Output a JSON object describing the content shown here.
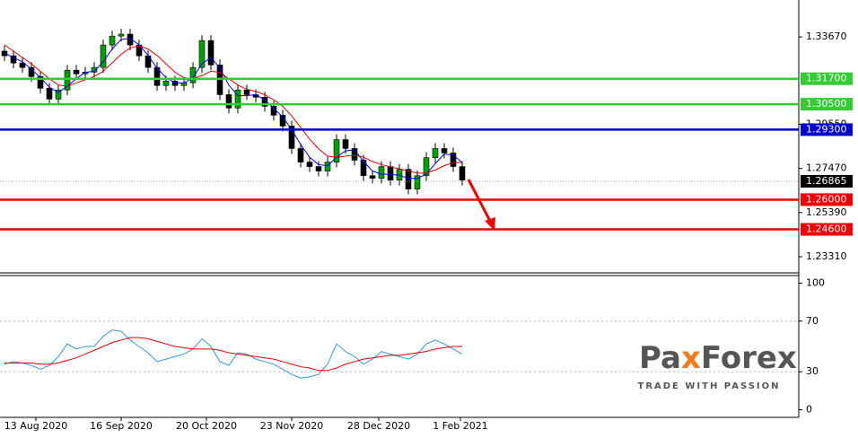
{
  "chart_data": [
    {
      "type": "candlestick",
      "xlim": [
        -0.5,
        88.5
      ],
      "ylim": [
        1.2255,
        1.3541
      ],
      "yticks": [
        {
          "value": 1.3367,
          "label": "1.33670"
        },
        {
          "value": 1.2955,
          "label": "1.29550"
        },
        {
          "value": 1.2747,
          "label": "1.27470"
        },
        {
          "value": 1.2539,
          "label": "1.25390"
        },
        {
          "value": 1.2331,
          "label": "1.23310"
        }
      ],
      "open": [
        1.33,
        1.3278,
        1.3244,
        1.3223,
        1.318,
        1.3125,
        1.3074,
        1.3117,
        1.321,
        1.3193,
        1.3201,
        1.3223,
        1.3329,
        1.3371,
        1.338,
        1.3329,
        1.3278,
        1.3223,
        1.3138,
        1.3159,
        1.3138,
        1.3151,
        1.3223,
        1.335,
        1.3235,
        1.3095,
        1.3032,
        1.3117,
        1.3095,
        1.3083,
        1.304,
        1.2998,
        1.2947,
        1.2841,
        1.2777,
        1.2756,
        1.2735,
        1.2777,
        1.2883,
        1.2841,
        1.2786,
        1.2713,
        1.2701,
        1.2756,
        1.2692,
        1.2743,
        1.265,
        1.2713,
        1.2798,
        1.2841,
        1.282,
        1.2756
      ],
      "high": [
        1.3325,
        1.3303,
        1.3269,
        1.3248,
        1.3205,
        1.315,
        1.3142,
        1.3235,
        1.3235,
        1.3226,
        1.3248,
        1.3354,
        1.3396,
        1.3405,
        1.3405,
        1.3354,
        1.3303,
        1.3248,
        1.3184,
        1.3184,
        1.3176,
        1.3248,
        1.3375,
        1.3375,
        1.326,
        1.312,
        1.3142,
        1.3142,
        1.312,
        1.3108,
        1.3065,
        1.3023,
        1.2972,
        1.2866,
        1.2802,
        1.2781,
        1.2802,
        1.2908,
        1.2908,
        1.2866,
        1.2811,
        1.2738,
        1.2781,
        1.2781,
        1.2768,
        1.2768,
        1.2738,
        1.2823,
        1.2866,
        1.2866,
        1.2845,
        1.2781
      ],
      "low": [
        1.3253,
        1.3219,
        1.3198,
        1.3155,
        1.31,
        1.3049,
        1.3049,
        1.3092,
        1.3168,
        1.3168,
        1.3176,
        1.3198,
        1.3304,
        1.3346,
        1.3304,
        1.3253,
        1.3198,
        1.3113,
        1.3113,
        1.3113,
        1.3113,
        1.3126,
        1.3198,
        1.321,
        1.307,
        1.3007,
        1.3007,
        1.307,
        1.3058,
        1.3015,
        1.2973,
        1.2922,
        1.2816,
        1.2752,
        1.2731,
        1.271,
        1.271,
        1.2752,
        1.2816,
        1.2761,
        1.2688,
        1.2676,
        1.2676,
        1.2667,
        1.2667,
        1.2625,
        1.2625,
        1.2688,
        1.2773,
        1.2795,
        1.2731,
        1.2667
      ],
      "close": [
        1.3278,
        1.3244,
        1.3223,
        1.318,
        1.3125,
        1.3074,
        1.3117,
        1.321,
        1.3193,
        1.3201,
        1.3223,
        1.3329,
        1.3371,
        1.338,
        1.3329,
        1.3278,
        1.3223,
        1.3138,
        1.3159,
        1.3138,
        1.3151,
        1.3223,
        1.335,
        1.3235,
        1.3095,
        1.3032,
        1.3117,
        1.3095,
        1.3083,
        1.304,
        1.2998,
        1.2947,
        1.2841,
        1.2777,
        1.2756,
        1.2735,
        1.2777,
        1.2883,
        1.2841,
        1.2786,
        1.2713,
        1.2701,
        1.2756,
        1.2692,
        1.2743,
        1.265,
        1.2713,
        1.2798,
        1.2841,
        1.282,
        1.2756,
        1.2692
      ],
      "up_color": "#00a000",
      "down_color": "#000000",
      "lines": [
        {
          "color": "#0000ff",
          "values": [
            1.329,
            1.327,
            1.325,
            1.3215,
            1.3175,
            1.313,
            1.3105,
            1.3135,
            1.317,
            1.32,
            1.3205,
            1.325,
            1.331,
            1.3355,
            1.336,
            1.333,
            1.328,
            1.322,
            1.3175,
            1.315,
            1.315,
            1.3175,
            1.324,
            1.327,
            1.322,
            1.314,
            1.309,
            1.309,
            1.3095,
            1.307,
            1.303,
            1.299,
            1.293,
            1.286,
            1.28,
            1.2765,
            1.276,
            1.28,
            1.283,
            1.2835,
            1.278,
            1.2735,
            1.272,
            1.272,
            1.2715,
            1.27,
            1.27,
            1.272,
            1.277,
            1.2815,
            1.281,
            1.2775
          ]
        },
        {
          "color": "#e00000",
          "values": [
            1.333,
            1.33,
            1.327,
            1.324,
            1.3205,
            1.317,
            1.314,
            1.3135,
            1.315,
            1.3165,
            1.318,
            1.3205,
            1.3245,
            1.3285,
            1.3315,
            1.3325,
            1.331,
            1.328,
            1.324,
            1.32,
            1.3175,
            1.317,
            1.3185,
            1.3205,
            1.32,
            1.317,
            1.314,
            1.312,
            1.311,
            1.3095,
            1.307,
            1.304,
            1.2995,
            1.294,
            1.2885,
            1.284,
            1.2805,
            1.28,
            1.2805,
            1.281,
            1.28,
            1.278,
            1.2765,
            1.2755,
            1.2745,
            1.2735,
            1.2725,
            1.2725,
            1.274,
            1.276,
            1.2775,
            1.2775
          ]
        }
      ],
      "levels": [
        {
          "value": 1.317,
          "label": "1.31700",
          "color": "#33cc33"
        },
        {
          "value": 1.305,
          "label": "1.30500",
          "color": "#33cc33"
        },
        {
          "value": 1.293,
          "label": "1.29300",
          "color": "#0000cc"
        },
        {
          "value": 1.26,
          "label": "1.26000",
          "color": "#ee0000"
        },
        {
          "value": 1.246,
          "label": "1.24600",
          "color": "#ee0000"
        }
      ],
      "current_price": {
        "value": 1.26865,
        "label": "1.26865"
      }
    },
    {
      "type": "line",
      "xlim": [
        -0.5,
        88.5
      ],
      "ylim": [
        -6,
        106
      ],
      "yticks": [
        100,
        70,
        30,
        0
      ],
      "grid_ticks": [
        70,
        30
      ],
      "xticks": [
        {
          "value": 3.5,
          "label": "13 Aug 2020"
        },
        {
          "value": 13,
          "label": "16 Sep 2020"
        },
        {
          "value": 22.5,
          "label": "20 Oct 2020"
        },
        {
          "value": 32,
          "label": "23 Nov 2020"
        },
        {
          "value": 41.7,
          "label": "28 Dec 2020"
        },
        {
          "value": 50.8,
          "label": "1 Feb 2021"
        }
      ],
      "lines": [
        {
          "color": "#3399dd",
          "values": [
            36,
            38,
            37,
            35,
            32,
            35,
            42,
            52,
            48,
            50,
            50,
            58,
            63,
            62,
            55,
            50,
            45,
            38,
            40,
            42,
            44,
            48,
            56,
            50,
            38,
            35,
            45,
            44,
            40,
            38,
            36,
            32,
            28,
            25,
            26,
            28,
            36,
            52,
            46,
            42,
            36,
            40,
            46,
            44,
            42,
            40,
            44,
            52,
            55,
            52,
            48,
            44
          ]
        },
        {
          "color": "#e00000",
          "values": [
            37,
            37,
            37,
            37,
            36,
            36,
            37,
            39,
            41,
            44,
            47,
            50,
            53,
            55,
            57,
            57,
            56,
            54,
            52,
            50,
            49,
            48,
            48,
            48,
            47,
            45,
            44,
            43,
            42,
            41,
            40,
            38,
            36,
            34,
            33,
            31,
            31,
            33,
            36,
            38,
            40,
            41,
            42,
            43,
            43,
            44,
            45,
            46,
            48,
            49,
            50,
            50
          ]
        }
      ]
    }
  ],
  "logo": {
    "parts": [
      "Pa",
      "x",
      "Forex"
    ],
    "tagline": "TRADE WITH PASSION"
  }
}
